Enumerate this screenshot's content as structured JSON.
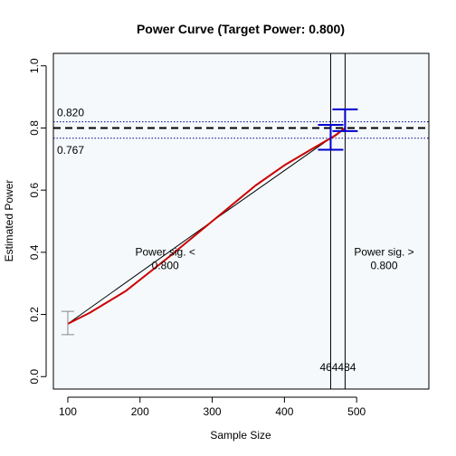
{
  "chart_data": {
    "type": "line",
    "title": "Power Curve (Target Power: 0.800)",
    "xlabel": "Sample Size",
    "ylabel": "Estimated Power",
    "xlim": [
      80,
      600
    ],
    "ylim": [
      -0.04,
      1.04
    ],
    "x_ticks": [
      "100",
      "200",
      "300",
      "400",
      "500"
    ],
    "y_ticks": [
      "0.0",
      "0.2",
      "0.4",
      "0.6",
      "0.8",
      "1.0"
    ],
    "plot_background": "#f5f9fb",
    "grid": false,
    "target_power": 0.8,
    "ci_band": {
      "upper": 0.82,
      "lower": 0.767,
      "upper_label": "0.820",
      "lower_label": "0.767",
      "color": "#00008b"
    },
    "series": [
      {
        "type": "line",
        "color": "#000000",
        "x": [
          100,
          300,
          484
        ],
        "y": [
          0.17,
          0.5,
          0.8
        ]
      },
      {
        "type": "line",
        "color": "#cc0000",
        "x": [
          100,
          130,
          180,
          240,
          300,
          360,
          400,
          440,
          470,
          484
        ],
        "y": [
          0.17,
          0.205,
          0.275,
          0.385,
          0.5,
          0.615,
          0.68,
          0.735,
          0.775,
          0.8
        ]
      }
    ],
    "error_bars": [
      {
        "x": 100,
        "low": 0.135,
        "high": 0.21,
        "color": "#888888"
      },
      {
        "x": 464,
        "low": 0.73,
        "high": 0.81,
        "color": "#0000cc"
      },
      {
        "x": 484,
        "low": 0.79,
        "high": 0.86,
        "color": "#0000cc"
      }
    ],
    "vlines": [
      {
        "x": 464,
        "label": "464"
      },
      {
        "x": 484,
        "label": "484"
      }
    ],
    "annotations": [
      {
        "x": 235,
        "y": 0.39,
        "lines": [
          "Power sig. <",
          "0.800"
        ]
      },
      {
        "x": 538,
        "y": 0.39,
        "lines": [
          "Power sig. >",
          "0.800"
        ]
      }
    ]
  }
}
